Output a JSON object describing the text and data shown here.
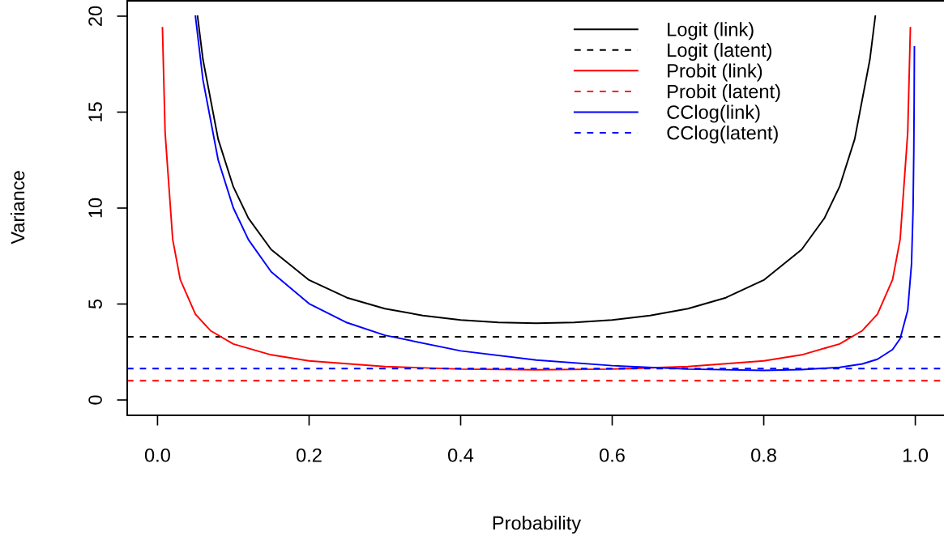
{
  "chart_data": {
    "type": "line",
    "xlabel": "Probability",
    "ylabel": "Variance",
    "xlim": [
      -0.04,
      1.04
    ],
    "ylim": [
      -0.8,
      20.8
    ],
    "xticks": [
      {
        "value": 0,
        "label": "0.0"
      },
      0.2,
      0.4,
      0.6,
      0.8,
      {
        "value": 1,
        "label": "1.0"
      }
    ],
    "yticks": [
      0,
      5,
      10,
      15,
      20
    ],
    "legend": "top right",
    "grid": false,
    "marker": "none",
    "series": [
      {
        "name": "Logit (link)",
        "color": "#000000",
        "line_style": "solid",
        "x": [
          0.0528,
          0.06,
          0.08,
          0.1,
          0.12,
          0.15,
          0.2,
          0.25,
          0.3,
          0.35,
          0.4,
          0.45,
          0.5,
          0.55,
          0.6,
          0.65,
          0.7,
          0.75,
          0.8,
          0.85,
          0.88,
          0.9,
          0.92,
          0.94,
          0.9472
        ],
        "values": [
          20,
          17.73,
          13.59,
          11.11,
          9.47,
          7.84,
          6.25,
          5.33,
          4.76,
          4.4,
          4.17,
          4.04,
          4,
          4.04,
          4.17,
          4.4,
          4.76,
          5.33,
          6.25,
          7.84,
          9.47,
          11.11,
          13.59,
          17.73,
          20
        ]
      },
      {
        "name": "Logit (latent)",
        "color": "#000000",
        "line_style": "dashed",
        "x": [
          -0.04,
          1.04
        ],
        "values": [
          3.29,
          3.29
        ]
      },
      {
        "name": "Probit (link)",
        "color": "#ff0000",
        "line_style": "solid",
        "x": [
          0.0065,
          0.01,
          0.02,
          0.03,
          0.05,
          0.07,
          0.1,
          0.15,
          0.2,
          0.3,
          0.4,
          0.5,
          0.6,
          0.7,
          0.8,
          0.85,
          0.9,
          0.93,
          0.95,
          0.97,
          0.98,
          0.99,
          0.9935
        ],
        "values": [
          19.4,
          13.94,
          8.37,
          6.27,
          4.47,
          3.61,
          2.92,
          2.35,
          2.04,
          1.74,
          1.61,
          1.57,
          1.61,
          1.74,
          2.04,
          2.35,
          2.92,
          3.61,
          4.47,
          6.27,
          8.37,
          13.94,
          19.4
        ]
      },
      {
        "name": "Probit (latent)",
        "color": "#ff0000",
        "line_style": "dashed",
        "x": [
          -0.04,
          1.04
        ],
        "values": [
          1,
          1
        ]
      },
      {
        "name": "CClog(link)",
        "color": "#0000ff",
        "line_style": "solid",
        "x": [
          0.05,
          0.06,
          0.08,
          0.1,
          0.12,
          0.15,
          0.2,
          0.25,
          0.3,
          0.4,
          0.5,
          0.6,
          0.7,
          0.8,
          0.85,
          0.9,
          0.93,
          0.95,
          0.97,
          0.98,
          0.99,
          0.995,
          0.997,
          0.998,
          0.9985,
          0.9988
        ],
        "values": [
          20,
          16.67,
          12.51,
          10.01,
          8.35,
          6.68,
          5.02,
          4.03,
          3.37,
          2.56,
          2.08,
          1.79,
          1.61,
          1.54,
          1.58,
          1.7,
          1.88,
          2.12,
          2.63,
          3.2,
          4.67,
          7.09,
          9.85,
          12.92,
          15.74,
          18.4
        ]
      },
      {
        "name": "CClog(latent)",
        "color": "#0000ff",
        "line_style": "dashed",
        "x": [
          -0.04,
          1.04
        ],
        "values": [
          1.64,
          1.64
        ]
      }
    ]
  }
}
